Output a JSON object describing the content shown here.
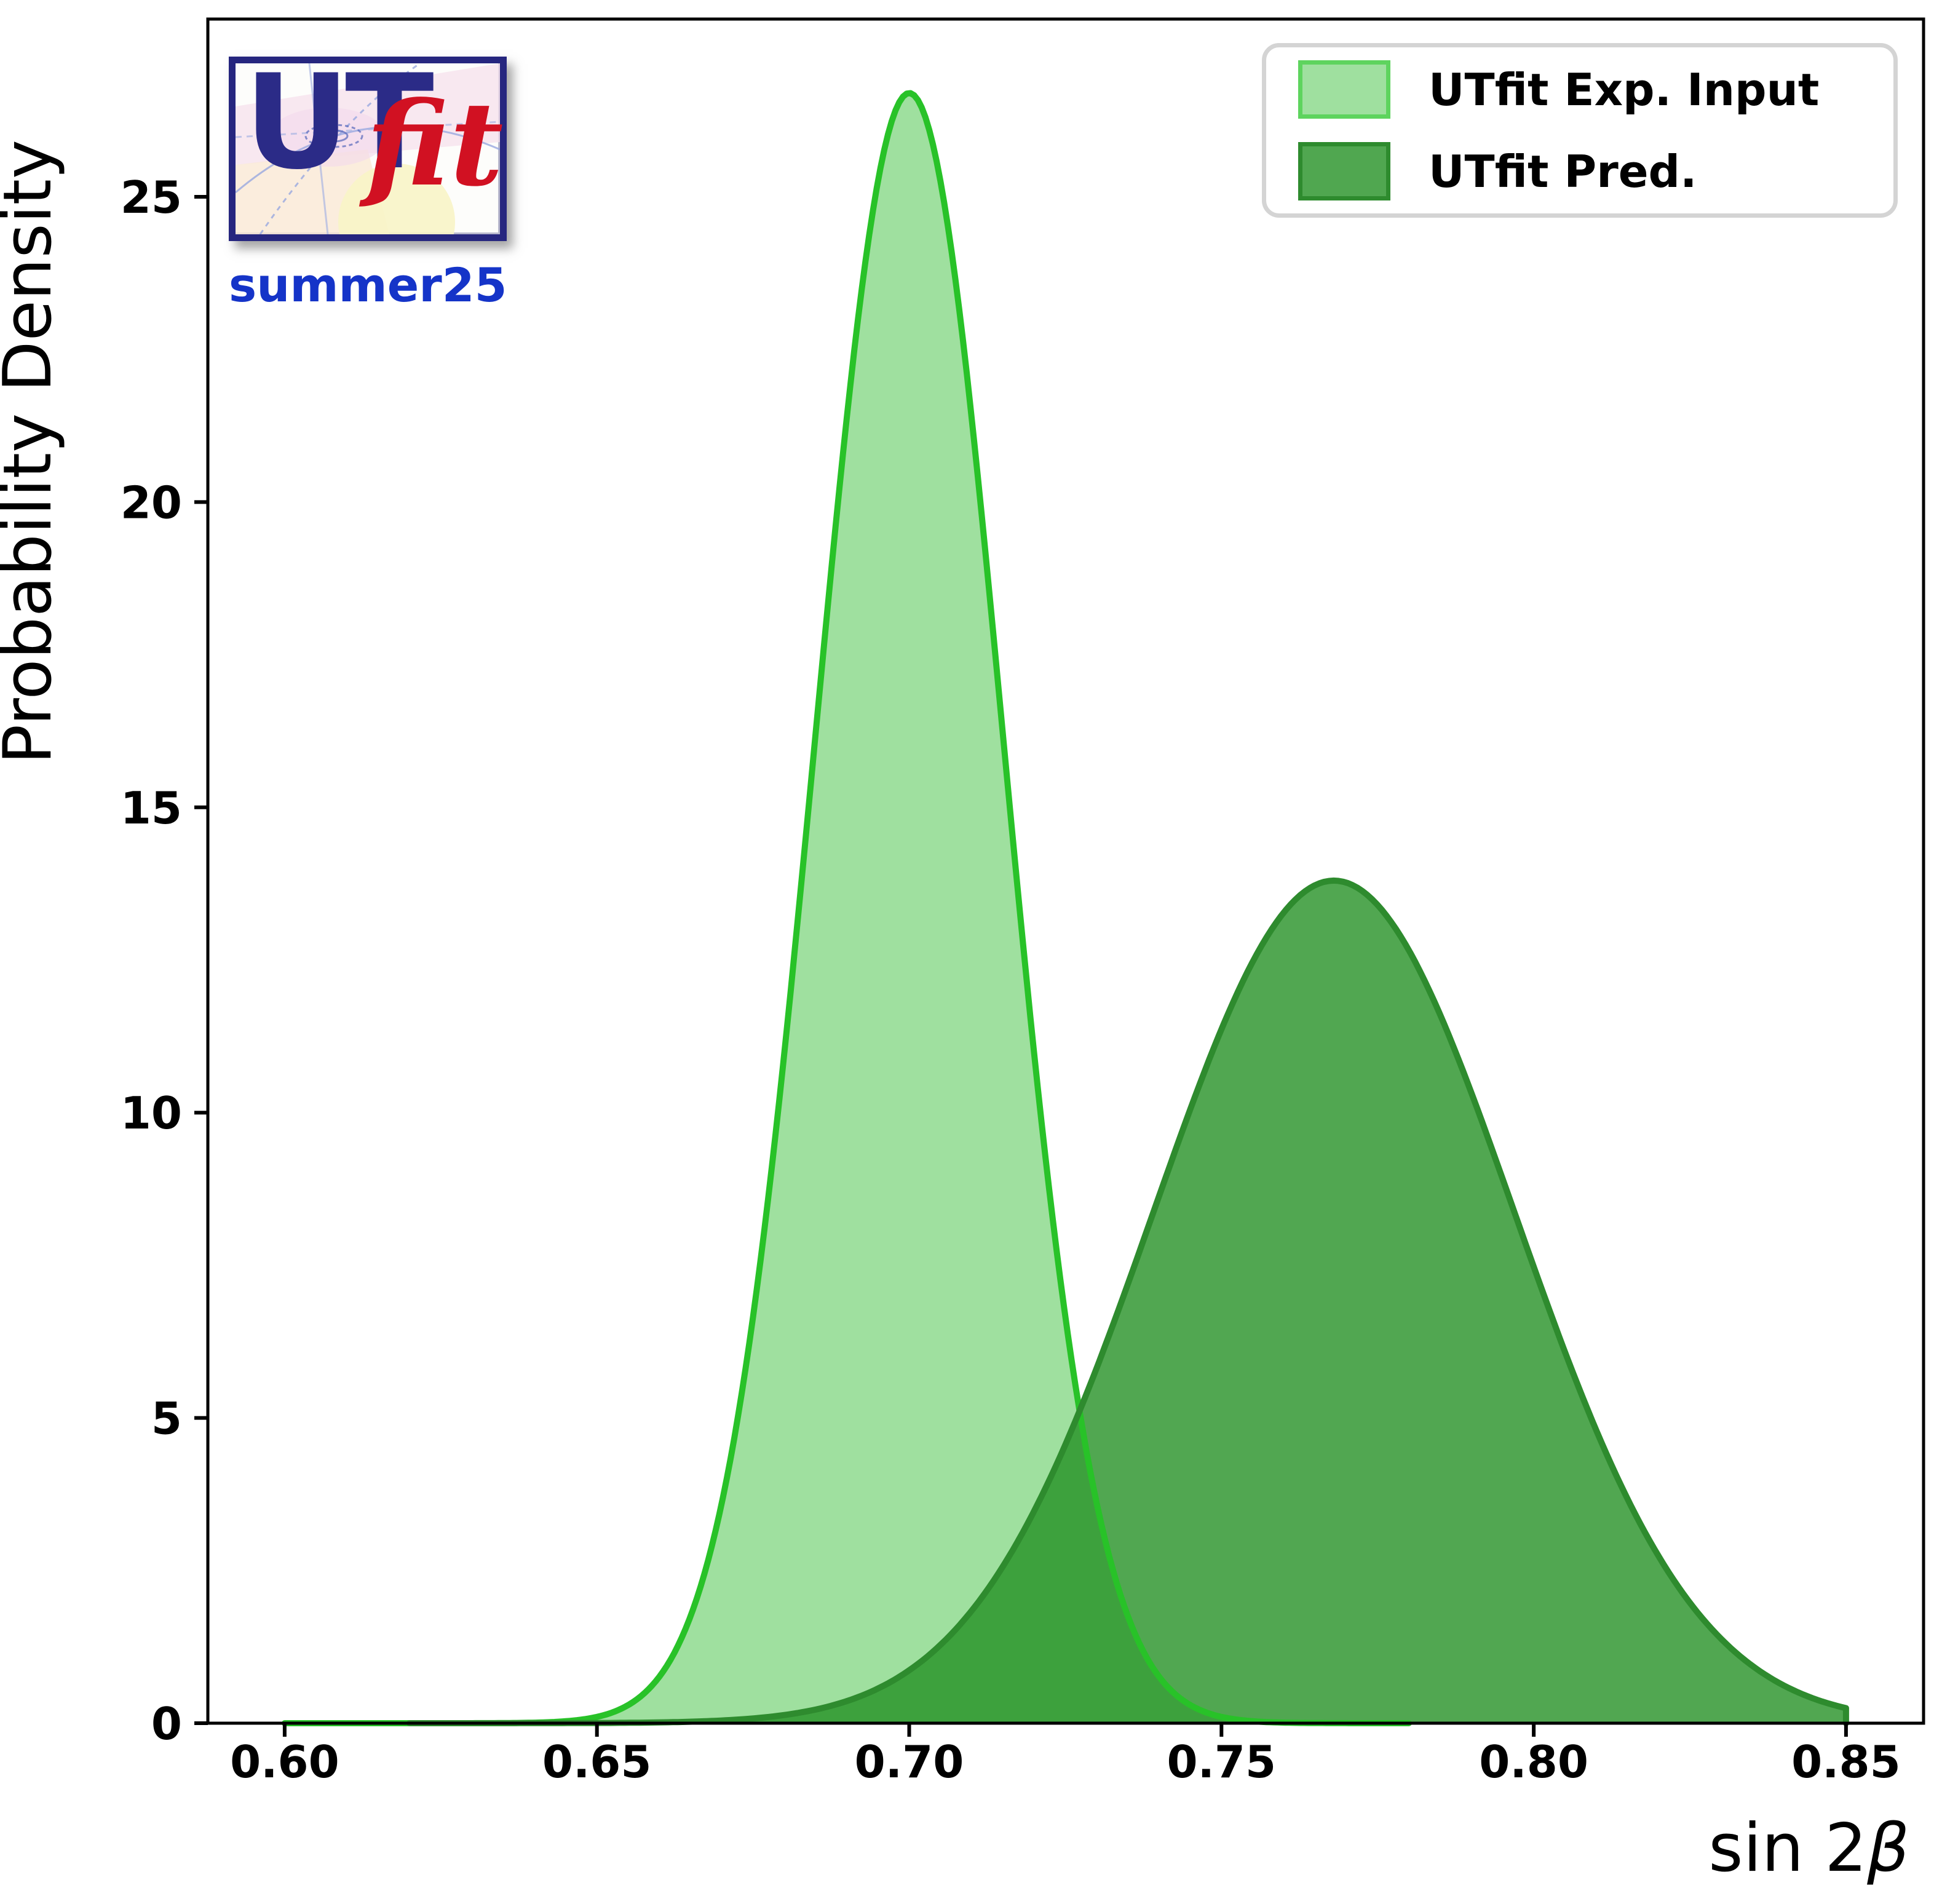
{
  "logo": {
    "ut": "UT",
    "fit": "fit",
    "version": "summer25",
    "navy": "#2b2b87",
    "red": "#d11122",
    "version_blue": "#1534c8"
  },
  "legend": {
    "items": [
      {
        "label": "UTfit Exp. Input",
        "fill": "#9fe09f",
        "border": "#5ed45e"
      },
      {
        "label": "UTfit Pred.",
        "fill": "#50a750",
        "border": "#2e8b2e"
      }
    ]
  },
  "axes": {
    "ylabel": "Probability Density",
    "xlabel_prefix": "sin 2",
    "xlabel_beta": "β",
    "x_ticks": [
      "0.60",
      "0.65",
      "0.70",
      "0.75",
      "0.80",
      "0.85"
    ],
    "y_ticks": [
      "0",
      "5",
      "10",
      "15",
      "20",
      "25"
    ]
  },
  "chart_data": {
    "type": "area",
    "title": "",
    "xlabel": "sin 2β",
    "ylabel": "Probability Density",
    "xlim": [
      0.5877,
      0.8624
    ],
    "ylim": [
      0,
      27.9
    ],
    "x_tick_values": [
      0.6,
      0.65,
      0.7,
      0.75,
      0.8,
      0.85
    ],
    "y_tick_values": [
      0,
      5,
      10,
      15,
      20,
      25
    ],
    "grid": false,
    "legend_position": "upper right",
    "series": [
      {
        "name": "UTfit Exp. Input",
        "shape": "gaussian",
        "mean": 0.7,
        "sigma": 0.015,
        "peak_density": 26.7,
        "x_range": [
          0.6,
          0.78
        ],
        "fill": "rgba(70,195,70,0.52)",
        "stroke": "#28c228",
        "stroke_width": 10
      },
      {
        "name": "UTfit Pred.",
        "shape": "gaussian",
        "mean": 0.768,
        "sigma": 0.0289,
        "peak_density": 13.8,
        "x_range": [
          0.62,
          0.85
        ],
        "truncated_at": 0.85,
        "fill": "rgba(34,143,34,0.79)",
        "stroke": "#2e8b2e",
        "stroke_width": 10
      }
    ],
    "summary": {
      "exp_input": "sin2b = 0.700 ± 0.015 (peak density ≈ 26.7)",
      "prediction": "sin2b = 0.768 ± 0.029 (peak density ≈ 13.8)"
    }
  }
}
